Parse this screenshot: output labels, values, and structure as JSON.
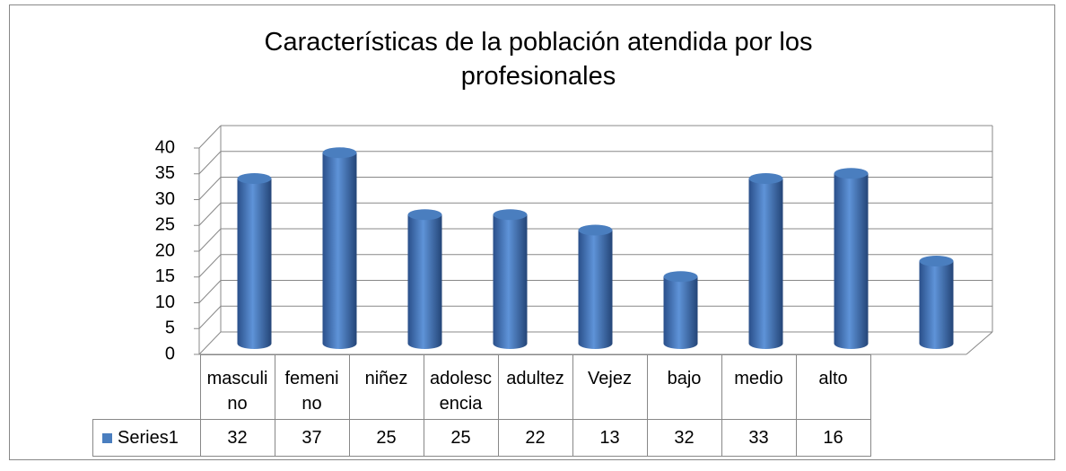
{
  "chart_data": {
    "type": "bar3d",
    "title": "Características de la población atendida por los profesionales",
    "categories": [
      "masculino",
      "femenino",
      "niñez",
      "adolescencia",
      "adultez",
      "Vejez",
      "bajo",
      "medio",
      "alto"
    ],
    "series": [
      {
        "name": "Series1",
        "color": "#4a7ebf",
        "values": [
          32,
          37,
          25,
          25,
          22,
          13,
          32,
          33,
          16
        ]
      }
    ],
    "ylim": [
      0,
      40
    ],
    "yticks": [
      0,
      5,
      10,
      15,
      20,
      25,
      30,
      35,
      40
    ],
    "grid": true,
    "data_table": true
  }
}
